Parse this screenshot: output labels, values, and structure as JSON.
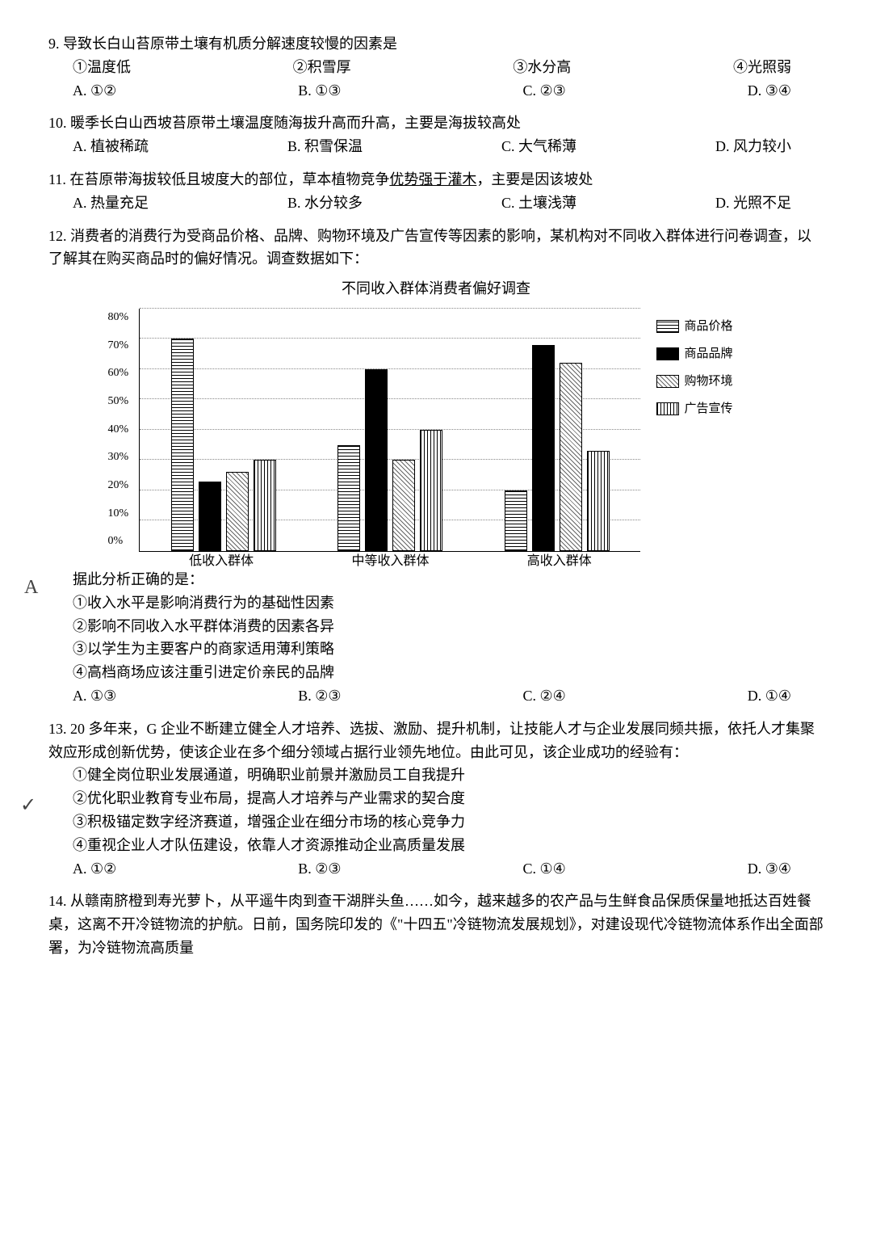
{
  "q9": {
    "num": "9.",
    "text": "导致长白山苔原带土壤有机质分解速度较慢的因素是",
    "stems": [
      "①温度低",
      "②积雪厚",
      "③水分高",
      "④光照弱"
    ],
    "opts": [
      "A. ①②",
      "B. ①③",
      "C. ②③",
      "D. ③④"
    ]
  },
  "q10": {
    "num": "10.",
    "text": "暖季长白山西坡苔原带土壤温度随海拔升高而升高，主要是海拔较高处",
    "opts": [
      "A. 植被稀疏",
      "B. 积雪保温",
      "C. 大气稀薄",
      "D. 风力较小"
    ]
  },
  "q11": {
    "num": "11.",
    "text": "在苔原带海拔较低且坡度大的部位，草本植物竞争优势强于灌木，主要是因该坡处",
    "opts": [
      "A. 热量充足",
      "B. 水分较多",
      "C. 土壤浅薄",
      "D. 光照不足"
    ]
  },
  "q12": {
    "num": "12.",
    "intro": "消费者的消费行为受商品价格、品牌、购物环境及广告宣传等因素的影响，某机构对不同收入群体进行问卷调查，以了解其在购买商品时的偏好情况。调查数据如下：",
    "chart_title": "不同收入群体消费者偏好调查",
    "y_ticks": [
      "0%",
      "10%",
      "20%",
      "30%",
      "40%",
      "50%",
      "60%",
      "70%",
      "80%"
    ],
    "y_max": 80,
    "series": [
      "商品价格",
      "商品品牌",
      "购物环境",
      "广告宣传"
    ],
    "categories": [
      "低收入群体",
      "中等收入群体",
      "高收入群体"
    ],
    "data": [
      [
        70,
        23,
        26,
        30
      ],
      [
        35,
        60,
        30,
        40
      ],
      [
        20,
        68,
        62,
        33
      ]
    ],
    "patterns": [
      "pat-1",
      "pat-2",
      "pat-3",
      "pat-4"
    ],
    "lead": "据此分析正确的是：",
    "stems": [
      "①收入水平是影响消费行为的基础性因素",
      "②影响不同收入水平群体消费的因素各异",
      "③以学生为主要客户的商家适用薄利策略",
      "④高档商场应该注重引进定价亲民的品牌"
    ],
    "opts": [
      "A. ①③",
      "B. ②③",
      "C. ②④",
      "D. ①④"
    ]
  },
  "q13": {
    "num": "13.",
    "text": "20 多年来，G 企业不断建立健全人才培养、选拔、激励、提升机制，让技能人才与企业发展同频共振，依托人才集聚效应形成创新优势，使该企业在多个细分领域占据行业领先地位。由此可见，该企业成功的经验有：",
    "stems": [
      "①健全岗位职业发展通道，明确职业前景并激励员工自我提升",
      "②优化职业教育专业布局，提高人才培养与产业需求的契合度",
      "③积极锚定数字经济赛道，增强企业在细分市场的核心竞争力",
      "④重视企业人才队伍建设，依靠人才资源推动企业高质量发展"
    ],
    "opts": [
      "A. ①②",
      "B. ②③",
      "C. ①④",
      "D. ③④"
    ]
  },
  "q14": {
    "num": "14.",
    "text": "从赣南脐橙到寿光萝卜，从平遥牛肉到查干湖胖头鱼……如今，越来越多的农产品与生鲜食品保质保量地抵达百姓餐桌，这离不开冷链物流的护航。日前，国务院印发的《\"十四五\"冷链物流发展规划》，对建设现代冷链物流体系作出全面部署，为冷链物流高质量"
  },
  "annotations": {
    "mark_q12": "A",
    "check_q13": "✓"
  }
}
